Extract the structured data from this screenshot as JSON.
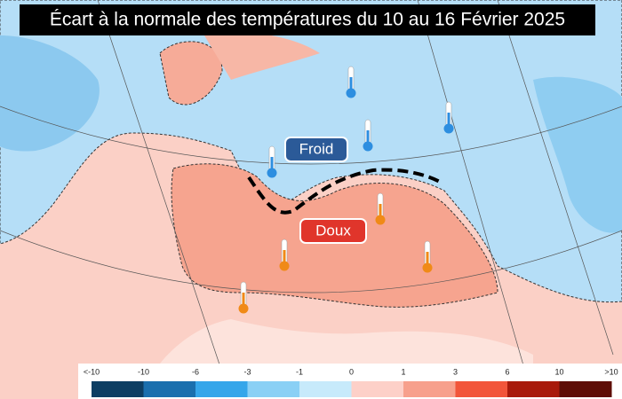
{
  "title": "Écart à la normale des températures du 10 au 16 Février 2025",
  "labels": {
    "cold": "Froid",
    "warm": "Doux"
  },
  "legend": {
    "labels": [
      "<-10",
      "-10",
      "-6",
      "-3",
      "-1",
      "0",
      "1",
      "3",
      "6",
      "10",
      ">10"
    ],
    "colors": [
      "#0d3e63",
      "#1a6fae",
      "#35a6ea",
      "#8ad0f5",
      "#c7eafb",
      "#fdd0c8",
      "#f7a08c",
      "#f2553a",
      "#a81a0b",
      "#5e0d06"
    ]
  }
}
